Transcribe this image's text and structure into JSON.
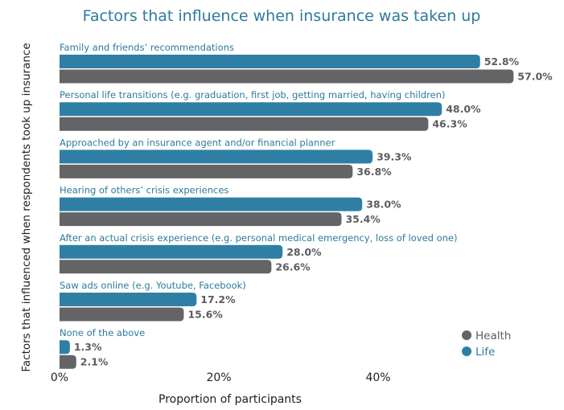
{
  "chart_data": {
    "type": "bar",
    "orientation": "horizontal",
    "title": "Factors that influence when insurance was taken up",
    "xlabel": "Proportion of participants",
    "ylabel": "Factors that influenced when respondents took up insurance",
    "xlim": [
      0,
      57
    ],
    "xticks": [
      "0%",
      "20%",
      "40%"
    ],
    "xtick_values": [
      0,
      20,
      40
    ],
    "categories": [
      "Family and friends’ recommendations",
      "Personal life transitions (e.g. graduation, first job, getting married, having children)",
      "Approached by an insurance agent and/or financial planner",
      "Hearing of others’ crisis experiences",
      "After an actual crisis experience (e.g. personal medical emergency, loss of loved one)",
      "Saw ads online (e.g. Youtube, Facebook)",
      "None of the above"
    ],
    "series": [
      {
        "name": "Life",
        "color": "#2f7fa4",
        "values": [
          52.8,
          48.0,
          39.3,
          38.0,
          28.0,
          17.2,
          1.3
        ],
        "labels": [
          "52.8%",
          "48.0%",
          "39.3%",
          "38.0%",
          "28.0%",
          "17.2%",
          "1.3%"
        ]
      },
      {
        "name": "Health",
        "color": "#646467",
        "values": [
          57.0,
          46.3,
          36.8,
          35.4,
          26.6,
          15.6,
          2.1
        ],
        "labels": [
          "57.0%",
          "46.3%",
          "36.8%",
          "35.4%",
          "26.6%",
          "15.6%",
          "2.1%"
        ]
      }
    ],
    "legend": {
      "placement": "bottom-right",
      "entries": [
        "Health",
        "Life"
      ]
    },
    "grid": false
  }
}
